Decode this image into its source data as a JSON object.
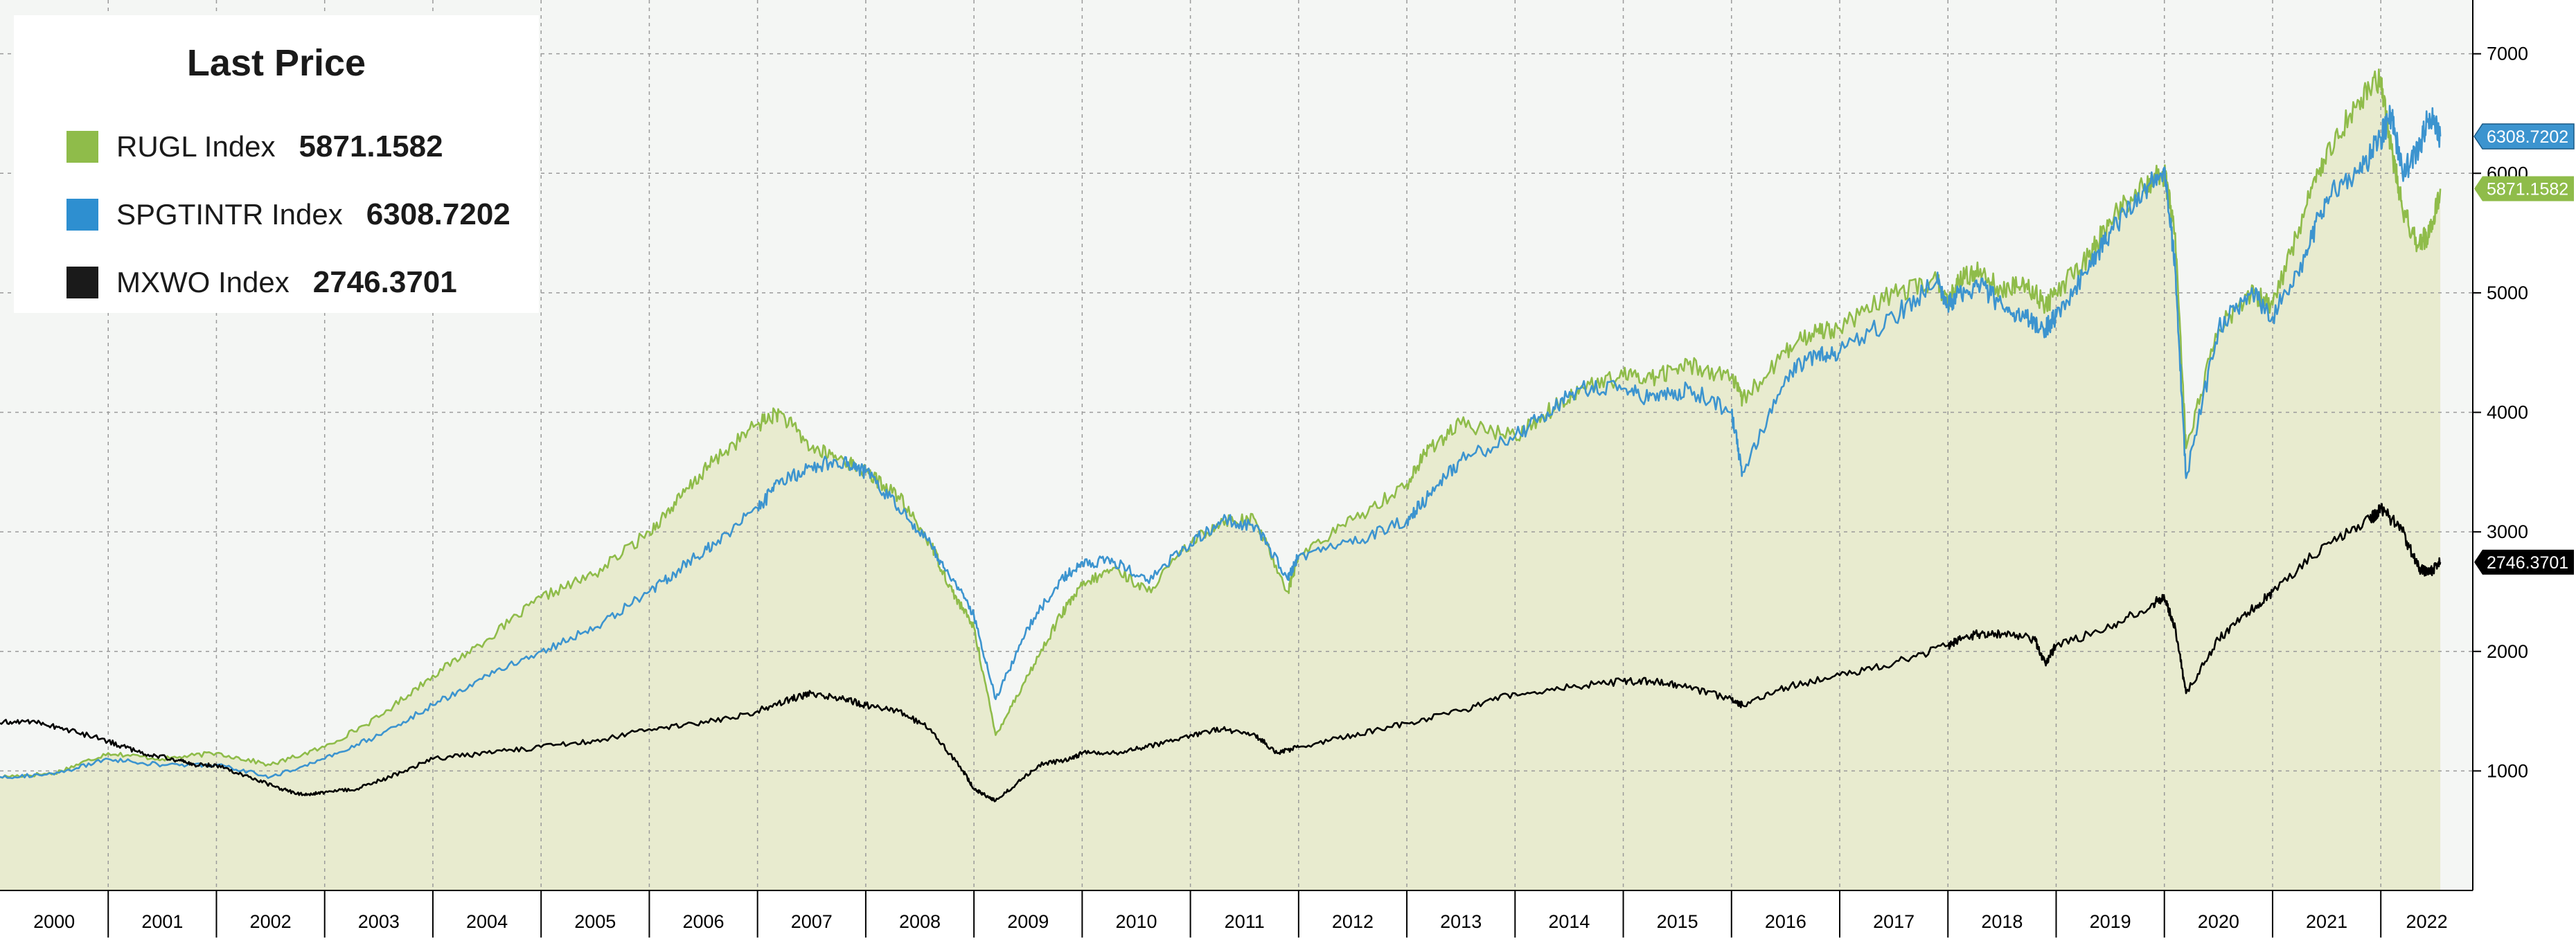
{
  "chart_data": {
    "type": "line",
    "title": "Last Price",
    "xlabel": "",
    "ylabel": "",
    "x_tick_labels": [
      "2000",
      "2001",
      "2002",
      "2003",
      "2004",
      "2005",
      "2006",
      "2007",
      "2008",
      "2009",
      "2010",
      "2011",
      "2012",
      "2013",
      "2014",
      "2015",
      "2016",
      "2017",
      "2018",
      "2019",
      "2020",
      "2021",
      "2022"
    ],
    "y_tick_labels": [
      "1000",
      "2000",
      "3000",
      "4000",
      "5000",
      "6000",
      "7000"
    ],
    "xlim": [
      2000.0,
      2022.85
    ],
    "ylim": [
      0,
      7450
    ],
    "grid": true,
    "legend_position": "top-left",
    "series": [
      {
        "name": "RUGL Index",
        "last_value": "5871.1582",
        "color": "#8fbc4a",
        "fill": "#e8ebcf",
        "x": [
          2000.0,
          2000.5,
          2001.0,
          2001.5,
          2002.0,
          2002.5,
          2003.0,
          2003.5,
          2004.0,
          2004.5,
          2005.0,
          2005.5,
          2006.0,
          2006.3,
          2006.6,
          2007.0,
          2007.2,
          2007.5,
          2007.8,
          2008.0,
          2008.3,
          2008.6,
          2008.8,
          2009.0,
          2009.2,
          2009.5,
          2009.8,
          2010.0,
          2010.3,
          2010.6,
          2011.0,
          2011.3,
          2011.6,
          2011.9,
          2012.0,
          2012.5,
          2013.0,
          2013.2,
          2013.5,
          2014.0,
          2014.3,
          2014.6,
          2015.0,
          2015.3,
          2015.6,
          2016.0,
          2016.1,
          2016.5,
          2016.8,
          2017.0,
          2017.5,
          2017.9,
          2018.0,
          2018.1,
          2018.3,
          2018.5,
          2018.7,
          2018.9,
          2019.0,
          2019.3,
          2019.5,
          2019.8,
          2020.0,
          2020.1,
          2020.2,
          2020.5,
          2020.8,
          2021.0,
          2021.3,
          2021.5,
          2021.8,
          2022.0,
          2022.1,
          2022.2,
          2022.35,
          2022.45,
          2022.55
        ],
        "y": [
          950,
          980,
          1150,
          1100,
          1150,
          1050,
          1200,
          1450,
          1800,
          2100,
          2450,
          2650,
          3000,
          3300,
          3600,
          3900,
          4000,
          3700,
          3600,
          3500,
          3300,
          2900,
          2500,
          2200,
          1300,
          1800,
          2300,
          2550,
          2700,
          2500,
          2900,
          3100,
          3100,
          2500,
          2800,
          3100,
          3400,
          3700,
          3900,
          3800,
          4000,
          4200,
          4300,
          4300,
          4400,
          4300,
          4100,
          4500,
          4700,
          4700,
          5000,
          5100,
          4900,
          5100,
          5200,
          5000,
          5100,
          4900,
          5000,
          5300,
          5600,
          5900,
          6000,
          5500,
          3700,
          4700,
          5000,
          4900,
          5700,
          6200,
          6600,
          6800,
          6200,
          5700,
          5400,
          5500,
          5871.1582
        ]
      },
      {
        "name": "SPGTINTR Index",
        "last_value": "6308.7202",
        "color": "#3c94cf",
        "x": [
          2000.0,
          2000.5,
          2001.0,
          2001.5,
          2002.0,
          2002.5,
          2003.0,
          2003.5,
          2004.0,
          2004.5,
          2005.0,
          2005.5,
          2006.0,
          2006.3,
          2006.6,
          2007.0,
          2007.2,
          2007.5,
          2007.8,
          2008.0,
          2008.3,
          2008.6,
          2008.8,
          2009.0,
          2009.2,
          2009.5,
          2009.8,
          2010.0,
          2010.3,
          2010.6,
          2011.0,
          2011.3,
          2011.6,
          2011.9,
          2012.0,
          2012.5,
          2013.0,
          2013.2,
          2013.5,
          2014.0,
          2014.3,
          2014.6,
          2015.0,
          2015.3,
          2015.6,
          2016.0,
          2016.1,
          2016.5,
          2016.8,
          2017.0,
          2017.5,
          2017.9,
          2018.0,
          2018.1,
          2018.3,
          2018.5,
          2018.7,
          2018.9,
          2019.0,
          2019.3,
          2019.5,
          2019.8,
          2020.0,
          2020.1,
          2020.2,
          2020.5,
          2020.8,
          2021.0,
          2021.3,
          2021.5,
          2021.8,
          2022.0,
          2022.1,
          2022.2,
          2022.35,
          2022.45,
          2022.55
        ],
        "y": [
          950,
          970,
          1100,
          1050,
          1050,
          950,
          1100,
          1300,
          1550,
          1800,
          2000,
          2200,
          2500,
          2700,
          2900,
          3200,
          3400,
          3550,
          3600,
          3500,
          3200,
          2900,
          2600,
          2300,
          1600,
          2200,
          2600,
          2750,
          2750,
          2600,
          2900,
          3100,
          3050,
          2600,
          2800,
          2900,
          3100,
          3300,
          3600,
          3800,
          4000,
          4200,
          4200,
          4100,
          4200,
          4000,
          3500,
          4300,
          4500,
          4500,
          4800,
          5100,
          4900,
          5000,
          5050,
          4900,
          4800,
          4700,
          4800,
          5200,
          5500,
          5850,
          6050,
          5200,
          3450,
          4700,
          5000,
          4800,
          5300,
          5800,
          6000,
          6300,
          6500,
          6000,
          6200,
          6500,
          6308.7202
        ]
      },
      {
        "name": "MXWO Index",
        "last_value": "2746.3701",
        "color": "#000000",
        "x": [
          2000.0,
          2000.3,
          2000.6,
          2001.0,
          2001.3,
          2001.6,
          2001.8,
          2002.0,
          2002.3,
          2002.6,
          2002.8,
          2003.0,
          2003.3,
          2003.6,
          2004.0,
          2004.5,
          2005.0,
          2005.5,
          2006.0,
          2006.5,
          2007.0,
          2007.3,
          2007.5,
          2007.8,
          2008.0,
          2008.3,
          2008.6,
          2008.9,
          2009.0,
          2009.1,
          2009.2,
          2009.4,
          2009.6,
          2009.9,
          2010.0,
          2010.3,
          2010.6,
          2011.0,
          2011.3,
          2011.6,
          2011.8,
          2012.0,
          2012.5,
          2013.0,
          2013.5,
          2014.0,
          2014.5,
          2015.0,
          2015.3,
          2015.6,
          2016.0,
          2016.1,
          2016.5,
          2017.0,
          2017.5,
          2018.0,
          2018.1,
          2018.3,
          2018.5,
          2018.8,
          2018.9,
          2019.0,
          2019.5,
          2019.9,
          2020.0,
          2020.1,
          2020.2,
          2020.5,
          2020.8,
          2021.0,
          2021.5,
          2021.9,
          2022.0,
          2022.2,
          2022.35,
          2022.45,
          2022.55
        ],
        "y": [
          1400,
          1420,
          1350,
          1250,
          1150,
          1100,
          1050,
          1050,
          950,
          850,
          800,
          820,
          850,
          950,
          1100,
          1150,
          1200,
          1250,
          1350,
          1400,
          1500,
          1600,
          1650,
          1600,
          1550,
          1500,
          1350,
          1000,
          850,
          800,
          750,
          900,
          1050,
          1100,
          1150,
          1150,
          1200,
          1300,
          1350,
          1300,
          1150,
          1200,
          1300,
          1400,
          1500,
          1650,
          1700,
          1750,
          1750,
          1700,
          1600,
          1550,
          1700,
          1800,
          1900,
          2050,
          2100,
          2150,
          2150,
          2100,
          1900,
          2050,
          2200,
          2400,
          2450,
          2200,
          1650,
          2100,
          2350,
          2500,
          2900,
          3100,
          3200,
          3000,
          2700,
          2650,
          2746.3701
        ]
      }
    ]
  }
}
